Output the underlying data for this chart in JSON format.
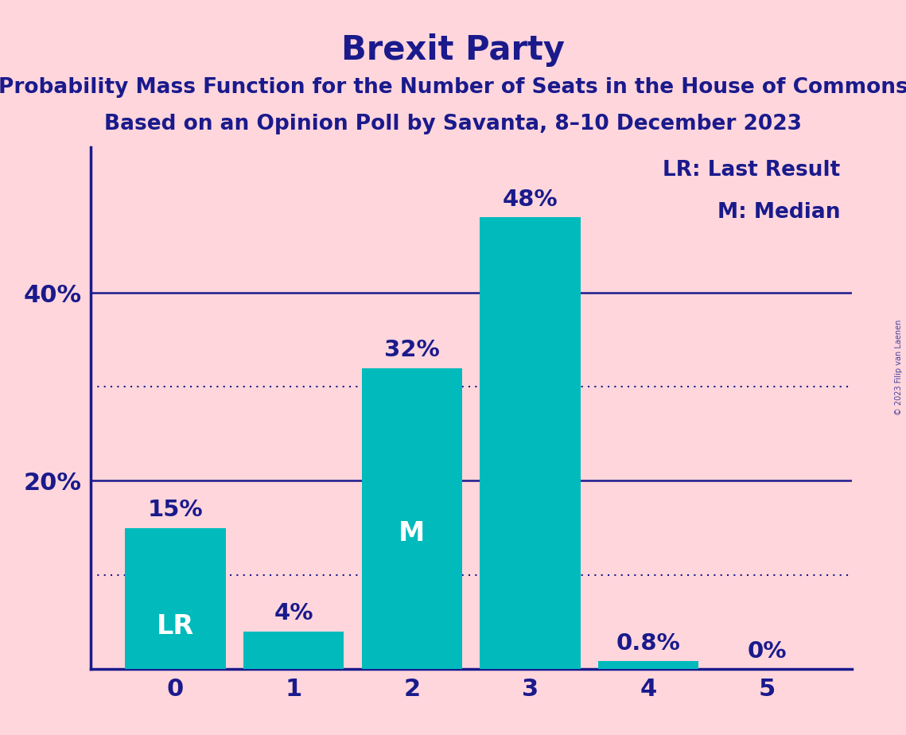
{
  "title": "Brexit Party",
  "subtitle1": "Probability Mass Function for the Number of Seats in the House of Commons",
  "subtitle2": "Based on an Opinion Poll by Savanta, 8–10 December 2023",
  "watermark": "© 2023 Filip van Laenen",
  "categories": [
    0,
    1,
    2,
    3,
    4,
    5
  ],
  "values": [
    0.15,
    0.04,
    0.32,
    0.48,
    0.008,
    0.0
  ],
  "bar_color": "#00BABB",
  "bar_labels": [
    "15%",
    "4%",
    "32%",
    "48%",
    "0.8%",
    "0%"
  ],
  "bar_inner_labels": [
    "LR",
    "",
    "M",
    "",
    "",
    ""
  ],
  "bar_inner_label_color": "white",
  "bar_label_color": "#1a1a8c",
  "background_color": "#FFD6DC",
  "axis_color": "#1a1a8c",
  "title_color": "#1a1a8c",
  "solid_hlines": [
    0.2,
    0.4
  ],
  "dotted_hlines": [
    0.1,
    0.3
  ],
  "hline_color": "#1a1a8c",
  "ytick_labels": [
    "20%",
    "40%"
  ],
  "ytick_values": [
    0.2,
    0.4
  ],
  "legend_text1": "LR: Last Result",
  "legend_text2": "M: Median",
  "ylim": [
    0,
    0.555
  ],
  "title_fontsize": 30,
  "subtitle_fontsize": 19,
  "bar_label_fontsize": 21,
  "bar_inner_fontsize": 24,
  "axis_tick_fontsize": 22,
  "ytick_fontsize": 22,
  "legend_fontsize": 19
}
